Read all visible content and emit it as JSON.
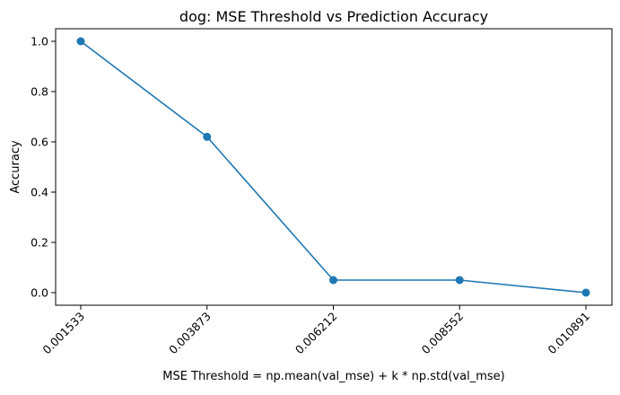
{
  "chart_data": {
    "type": "line",
    "title": "dog: MSE Threshold vs Prediction Accuracy",
    "xlabel": "MSE Threshold = np.mean(val_mse) + k * np.std(val_mse)",
    "ylabel": "Accuracy",
    "categories": [
      "0.001533",
      "0.003873",
      "0.006212",
      "0.008552",
      "0.010891"
    ],
    "series": [
      {
        "values": [
          1.0,
          0.62,
          0.05,
          0.05,
          0.0
        ],
        "color": "#1f77b4",
        "marker": "circle"
      }
    ],
    "ylim": [
      -0.05,
      1.05
    ],
    "yticks": [
      "0.0",
      "0.2",
      "0.4",
      "0.6",
      "0.8",
      "1.0"
    ],
    "ytick_values": [
      0.0,
      0.2,
      0.4,
      0.6,
      0.8,
      1.0
    ],
    "grid": false,
    "legend": "none"
  }
}
